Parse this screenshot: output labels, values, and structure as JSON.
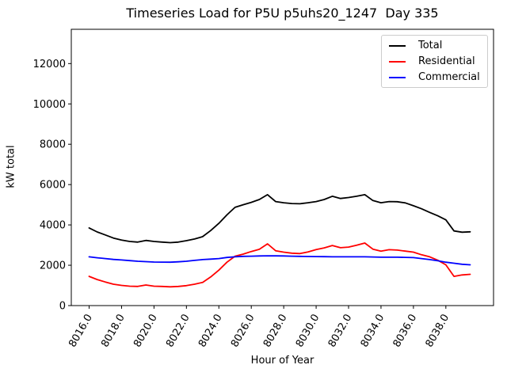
{
  "figure": {
    "title": "Timeseries Load for P5U p5uhs20_1247  Day 335",
    "xlabel": "Hour of Year",
    "ylabel": "kW total"
  },
  "legend": {
    "position": "upper right",
    "entries": [
      {
        "label": "Total",
        "color": "#000000"
      },
      {
        "label": "Residential",
        "color": "#ff0000"
      },
      {
        "label": "Commercial",
        "color": "#0000ff"
      }
    ]
  },
  "axes": {
    "xlim": [
      8014.9,
      8040.94
    ],
    "ylim": [
      0,
      13700
    ],
    "x_ticks": [
      8016,
      8018,
      8020,
      8022,
      8024,
      8026,
      8028,
      8030,
      8032,
      8034,
      8036,
      8038
    ],
    "x_tick_labels": [
      "8016.0",
      "8018.0",
      "8020.0",
      "8022.0",
      "8024.0",
      "8026.0",
      "8028.0",
      "8030.0",
      "8032.0",
      "8034.0",
      "8036.0",
      "8038.0"
    ],
    "y_ticks": [
      0,
      2000,
      4000,
      6000,
      8000,
      10000,
      12000
    ],
    "y_tick_labels": [
      "0",
      "2000",
      "4000",
      "6000",
      "8000",
      "10000",
      "12000"
    ],
    "grid": false
  },
  "chart_data": {
    "type": "line",
    "title": "Timeseries Load for P5U p5uhs20_1247  Day 335",
    "xlabel": "Hour of Year",
    "ylabel": "kW total",
    "xlim": [
      8014.9,
      8040.94
    ],
    "ylim": [
      0,
      13700
    ],
    "grid": false,
    "legend_position": "upper right",
    "x": [
      8016.0,
      8016.5,
      8017.0,
      8017.5,
      8018.0,
      8018.5,
      8019.0,
      8019.5,
      8020.0,
      8020.5,
      8021.0,
      8021.5,
      8022.0,
      8022.5,
      8023.0,
      8023.5,
      8024.0,
      8024.5,
      8025.0,
      8025.5,
      8026.0,
      8026.5,
      8027.0,
      8027.5,
      8028.0,
      8028.5,
      8029.0,
      8029.5,
      8030.0,
      8030.5,
      8031.0,
      8031.5,
      8032.0,
      8032.5,
      8033.0,
      8033.5,
      8034.0,
      8034.5,
      8035.0,
      8035.5,
      8036.0,
      8036.5,
      8037.0,
      8037.5,
      8038.0,
      8038.5,
      8039.0,
      8039.5
    ],
    "series": [
      {
        "name": "Total",
        "color": "#000000",
        "values": [
          3850,
          3650,
          3500,
          3350,
          3250,
          3180,
          3150,
          3230,
          3180,
          3150,
          3120,
          3150,
          3220,
          3300,
          3420,
          3720,
          4080,
          4500,
          4870,
          5000,
          5120,
          5260,
          5500,
          5160,
          5100,
          5060,
          5050,
          5100,
          5160,
          5260,
          5420,
          5310,
          5360,
          5420,
          5500,
          5210,
          5100,
          5160,
          5150,
          5090,
          4950,
          4800,
          4620,
          4450,
          4250,
          3700,
          3640,
          3660
        ]
      },
      {
        "name": "Residential",
        "color": "#ff0000",
        "values": [
          1450,
          1290,
          1170,
          1060,
          1000,
          960,
          950,
          1020,
          960,
          950,
          930,
          950,
          990,
          1060,
          1150,
          1420,
          1760,
          2150,
          2450,
          2550,
          2680,
          2790,
          3060,
          2720,
          2650,
          2600,
          2580,
          2660,
          2780,
          2860,
          2980,
          2870,
          2900,
          2990,
          3100,
          2800,
          2700,
          2770,
          2750,
          2700,
          2650,
          2520,
          2420,
          2250,
          2020,
          1450,
          1520,
          1550
        ]
      },
      {
        "name": "Commercial",
        "color": "#0000ff",
        "values": [
          2420,
          2370,
          2330,
          2290,
          2260,
          2230,
          2200,
          2180,
          2160,
          2155,
          2150,
          2170,
          2200,
          2240,
          2280,
          2305,
          2330,
          2385,
          2420,
          2440,
          2450,
          2460,
          2470,
          2465,
          2460,
          2450,
          2440,
          2435,
          2430,
          2425,
          2420,
          2420,
          2420,
          2420,
          2420,
          2410,
          2400,
          2400,
          2400,
          2390,
          2380,
          2330,
          2280,
          2220,
          2150,
          2100,
          2050,
          2020
        ]
      }
    ]
  }
}
